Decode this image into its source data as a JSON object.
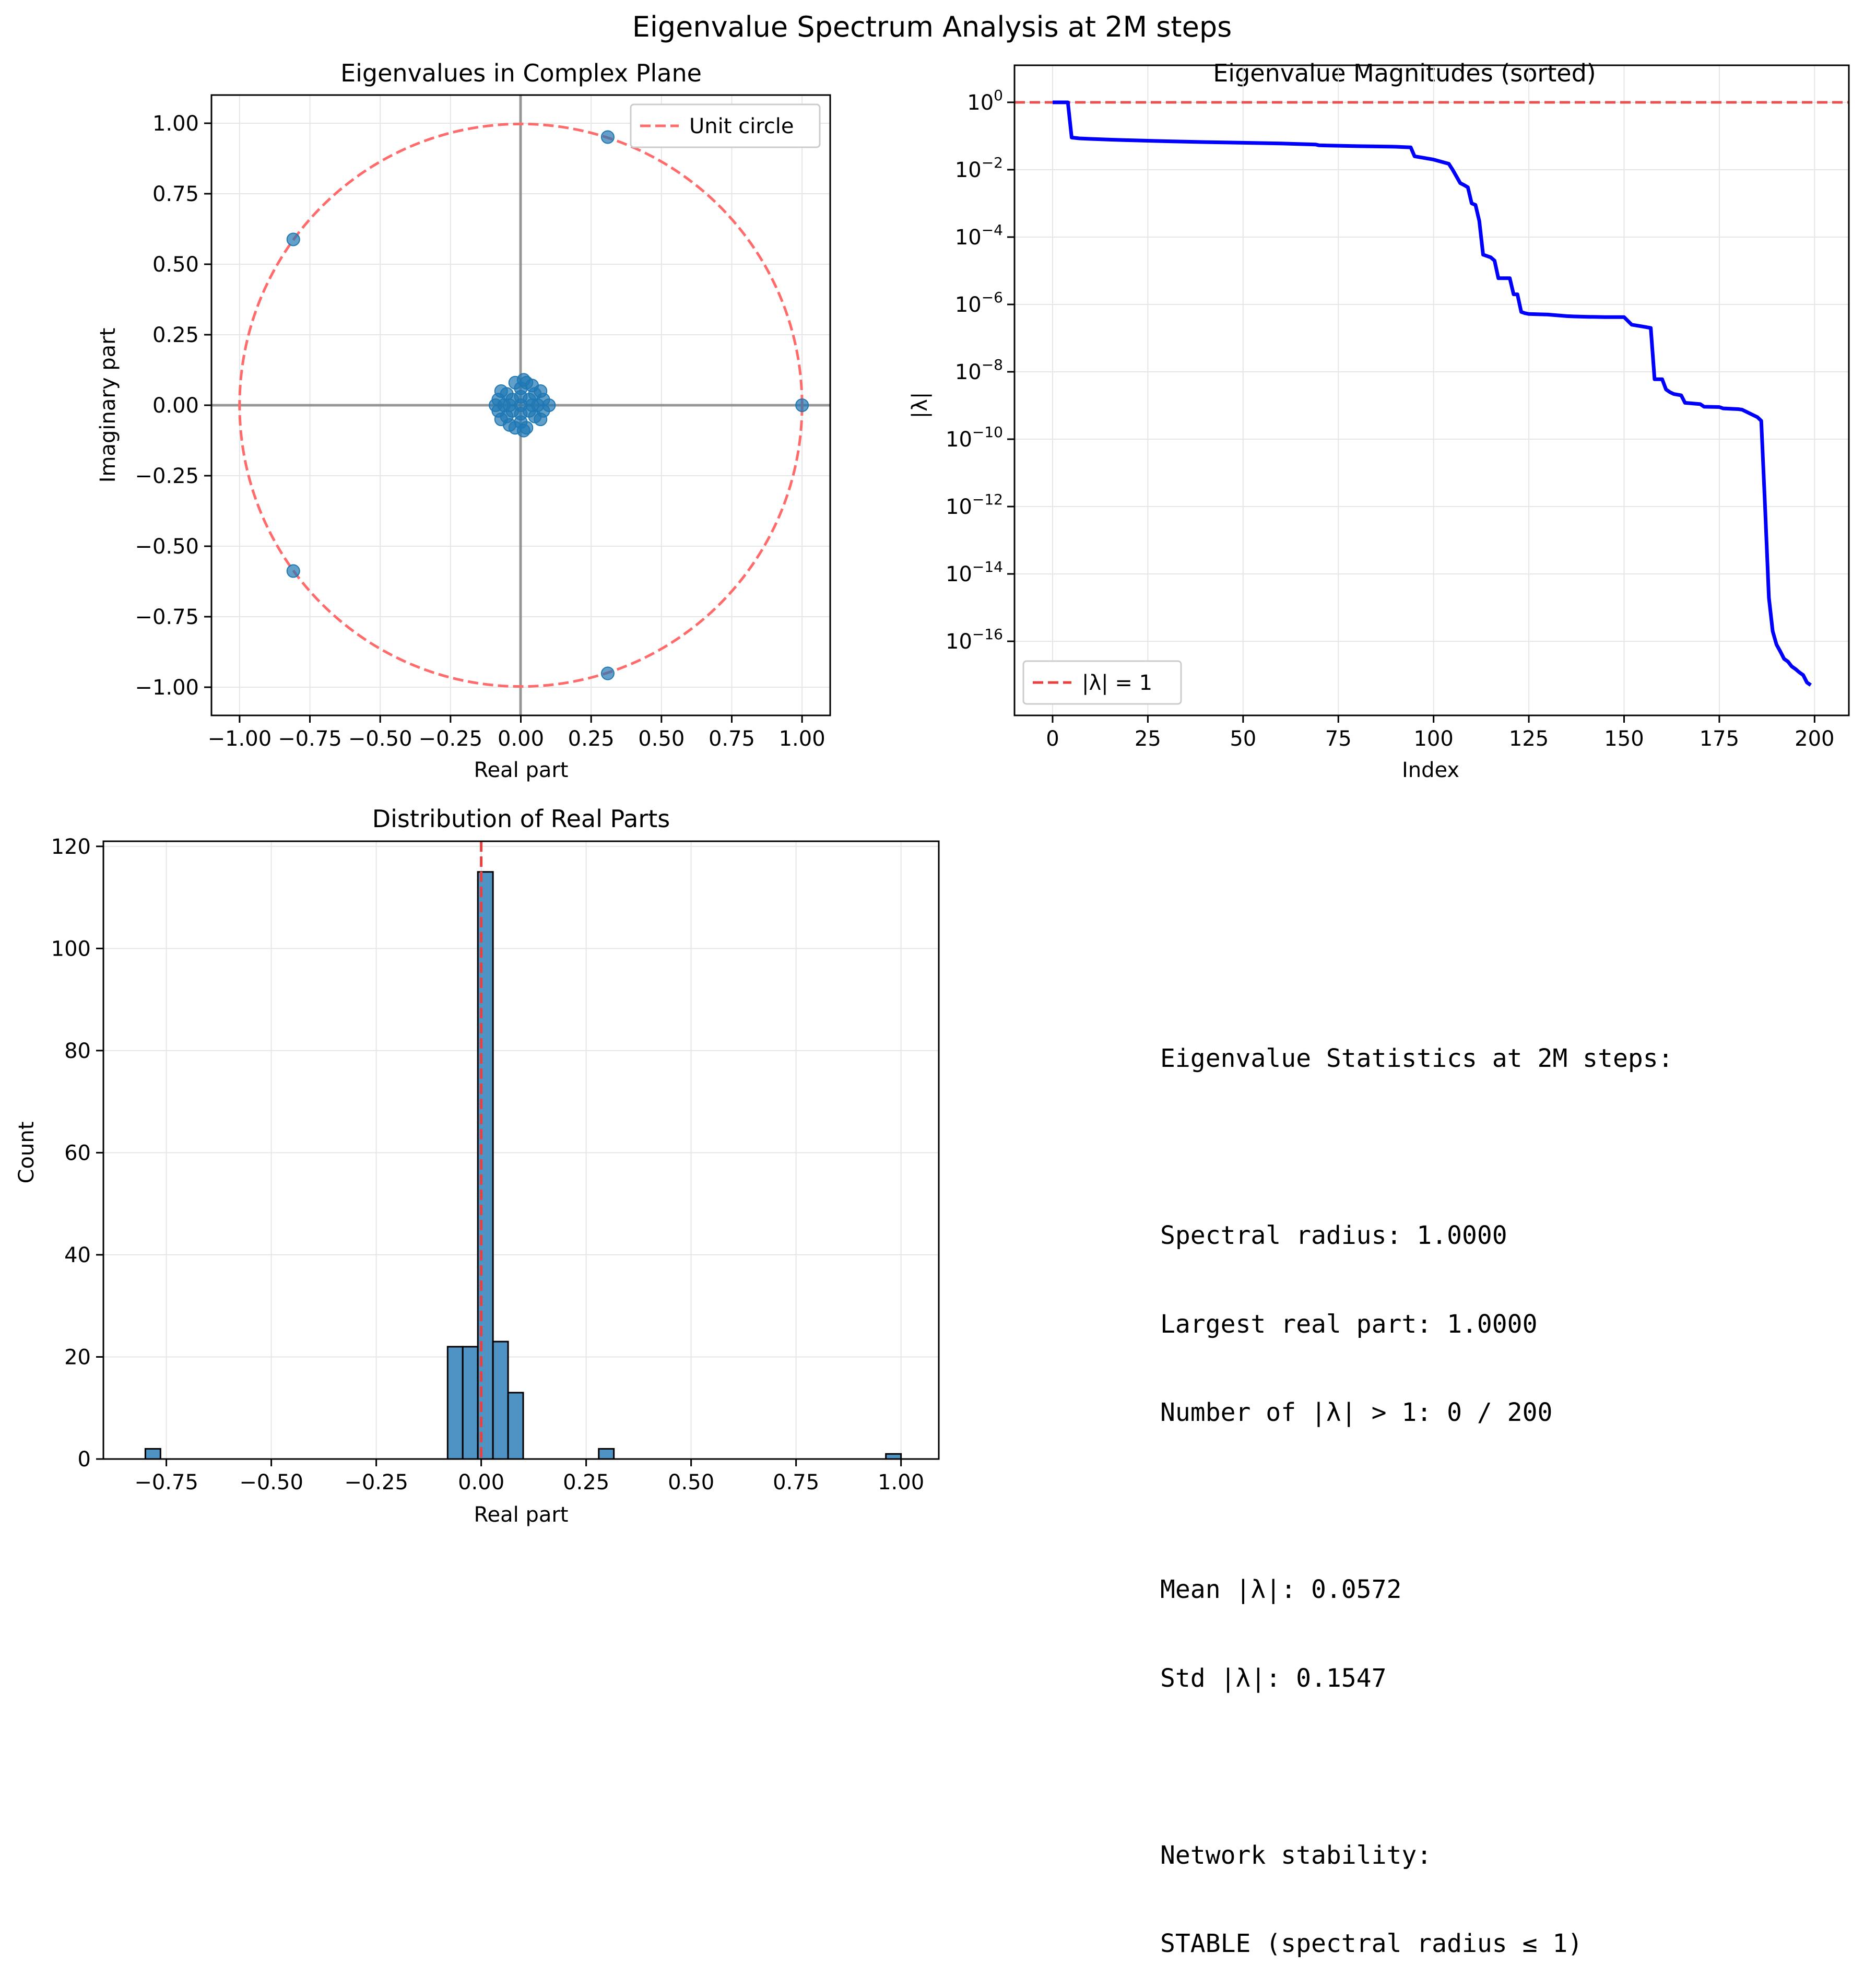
{
  "figure_title": "Eigenvalue Spectrum Analysis at 2M steps",
  "colors": {
    "scatter": "#1f77b4",
    "unit_circle": "#ff6b6b",
    "magnitude_line": "#0000ff",
    "reference_line": "#e8413f",
    "hist_bar": "#4f93c4",
    "grid": "#e6e6e6"
  },
  "chart_data": [
    {
      "type": "scatter",
      "title": "Eigenvalues in Complex Plane",
      "xlabel": "Real part",
      "ylabel": "Imaginary part",
      "xlim": [
        -1.1,
        1.1
      ],
      "ylim": [
        -1.1,
        1.1
      ],
      "xticks": [
        "−1.00",
        "−0.75",
        "−0.50",
        "−0.25",
        "0.00",
        "0.25",
        "0.50",
        "0.75",
        "1.00"
      ],
      "yticks": [
        "−1.00",
        "−0.75",
        "−0.50",
        "−0.25",
        "0.00",
        "0.25",
        "0.50",
        "0.75",
        "1.00"
      ],
      "grid": true,
      "legend": {
        "placement": "upper right",
        "entries": [
          "Unit circle"
        ]
      },
      "points": [
        [
          1.0,
          0.0
        ],
        [
          0.309,
          0.951
        ],
        [
          0.309,
          -0.951
        ],
        [
          -0.809,
          0.588
        ],
        [
          -0.809,
          -0.588
        ],
        [
          0.0,
          0.0
        ],
        [
          0.03,
          0.02
        ],
        [
          -0.03,
          0.02
        ],
        [
          0.03,
          -0.02
        ],
        [
          -0.03,
          -0.02
        ],
        [
          0.06,
          0.0
        ],
        [
          -0.06,
          0.0
        ],
        [
          0.0,
          0.06
        ],
        [
          0.0,
          -0.06
        ],
        [
          0.05,
          0.04
        ],
        [
          -0.05,
          0.04
        ],
        [
          0.05,
          -0.04
        ],
        [
          -0.05,
          -0.04
        ],
        [
          0.08,
          0.02
        ],
        [
          -0.08,
          0.02
        ],
        [
          0.08,
          -0.02
        ],
        [
          -0.08,
          -0.02
        ],
        [
          0.02,
          0.08
        ],
        [
          -0.02,
          0.08
        ],
        [
          0.02,
          -0.08
        ],
        [
          -0.02,
          -0.08
        ],
        [
          0.1,
          0.0
        ],
        [
          -0.09,
          0.0
        ],
        [
          0.04,
          0.07
        ],
        [
          -0.04,
          -0.07
        ],
        [
          0.07,
          0.05
        ],
        [
          -0.07,
          -0.05
        ],
        [
          0.07,
          -0.05
        ],
        [
          -0.07,
          0.05
        ],
        [
          0.01,
          0.09
        ],
        [
          0.01,
          -0.09
        ],
        [
          0.04,
          0.0
        ],
        [
          -0.04,
          0.0
        ],
        [
          0.0,
          0.03
        ],
        [
          0.0,
          -0.03
        ]
      ]
    },
    {
      "type": "line",
      "title": "Eigenvalue Magnitudes (sorted)",
      "xlabel": "Index",
      "ylabel": "|λ|",
      "yscale": "log",
      "xlim": [
        -10,
        209
      ],
      "ylim_log10": [
        -18.2,
        1.1
      ],
      "xticks": [
        "0",
        "25",
        "50",
        "75",
        "100",
        "125",
        "150",
        "175",
        "200"
      ],
      "yticks": [
        {
          "base": "10",
          "exp": "0"
        },
        {
          "base": "10",
          "exp": "−2"
        },
        {
          "base": "10",
          "exp": "−4"
        },
        {
          "base": "10",
          "exp": "−6"
        },
        {
          "base": "10",
          "exp": "−8"
        },
        {
          "base": "10",
          "exp": "−10"
        },
        {
          "base": "10",
          "exp": "−12"
        },
        {
          "base": "10",
          "exp": "−14"
        },
        {
          "base": "10",
          "exp": "−16"
        }
      ],
      "grid": true,
      "legend": {
        "placement": "lower left",
        "entries": [
          "|λ| = 1"
        ]
      },
      "x": [
        0,
        4,
        5,
        7,
        10,
        15,
        20,
        30,
        40,
        50,
        60,
        69,
        70,
        80,
        90,
        94,
        95,
        100,
        104,
        105,
        107,
        108,
        109,
        110,
        111,
        112,
        113,
        115,
        116,
        117,
        118,
        120,
        121,
        122,
        123,
        124,
        125,
        130,
        135,
        137,
        140,
        145,
        150,
        152,
        155,
        157,
        158,
        160,
        161,
        162,
        163,
        165,
        166,
        170,
        171,
        175,
        176,
        180,
        181,
        185,
        186,
        187,
        188,
        189,
        190,
        191,
        192,
        193,
        194,
        195,
        196,
        197,
        198,
        199
      ],
      "y": [
        1.0,
        1.0,
        0.09,
        0.085,
        0.082,
        0.078,
        0.075,
        0.07,
        0.066,
        0.063,
        0.06,
        0.056,
        0.053,
        0.05,
        0.048,
        0.046,
        0.025,
        0.02,
        0.015,
        0.01,
        0.004,
        0.0035,
        0.003,
        0.001,
        0.0009,
        0.0003,
        3e-05,
        2.5e-05,
        2e-05,
        6e-06,
        6e-06,
        6e-06,
        2e-06,
        2e-06,
        6e-07,
        5.5e-07,
        5.2e-07,
        5e-07,
        4.5e-07,
        4.4e-07,
        4.3e-07,
        4.2e-07,
        4.2e-07,
        2.5e-07,
        2.2e-07,
        2e-07,
        6e-09,
        6e-09,
        3e-09,
        2.5e-09,
        2.2e-09,
        2e-09,
        1.2e-09,
        1.1e-09,
        9.2e-10,
        9e-10,
        8.2e-10,
        7.8e-10,
        7.5e-10,
        4.5e-10,
        3.5e-10,
        1e-12,
        2e-15,
        2e-16,
        8e-17,
        5e-17,
        3e-17,
        2.5e-17,
        1.8e-17,
        1.5e-17,
        1.2e-17,
        1e-17,
        6e-18,
        5e-18
      ]
    },
    {
      "type": "bar",
      "title": "Distribution of Real Parts",
      "xlabel": "Real part",
      "ylabel": "Count",
      "xlim": [
        -0.9,
        1.09
      ],
      "ylim": [
        0,
        121
      ],
      "xticks": [
        "−0.75",
        "−0.50",
        "−0.25",
        "0.00",
        "0.25",
        "0.50",
        "0.75",
        "1.00"
      ],
      "yticks": [
        "0",
        "20",
        "40",
        "60",
        "80",
        "100",
        "120"
      ],
      "grid": true,
      "bin_edges": [
        -0.8,
        -0.764,
        -0.728,
        -0.692,
        -0.656,
        -0.62,
        -0.584,
        -0.548,
        -0.512,
        -0.476,
        -0.44,
        -0.404,
        -0.368,
        -0.332,
        -0.296,
        -0.26,
        -0.224,
        -0.188,
        -0.152,
        -0.116,
        -0.08,
        -0.044,
        -0.008,
        0.028,
        0.064,
        0.1,
        0.136,
        0.172,
        0.208,
        0.244,
        0.28,
        0.316,
        0.352,
        0.388,
        0.424,
        0.46,
        0.496,
        0.532,
        0.568,
        0.604,
        0.64,
        0.676,
        0.712,
        0.748,
        0.784,
        0.82,
        0.856,
        0.892,
        0.928,
        0.964,
        1.0
      ],
      "counts": [
        2,
        0,
        0,
        0,
        0,
        0,
        0,
        0,
        0,
        0,
        0,
        0,
        0,
        0,
        0,
        0,
        0,
        0,
        0,
        0,
        22,
        22,
        115,
        23,
        13,
        0,
        0,
        0,
        0,
        0,
        2,
        0,
        0,
        0,
        0,
        0,
        0,
        0,
        0,
        0,
        0,
        0,
        0,
        0,
        0,
        0,
        0,
        0,
        0,
        1
      ]
    }
  ],
  "stats": {
    "lines": [
      "Eigenvalue Statistics at 2M steps:",
      "",
      "Spectral radius: 1.0000",
      "Largest real part: 1.0000",
      "Number of |λ| > 1: 0 / 200",
      "",
      "Mean |λ|: 0.0572",
      "Std |λ|: 0.1547",
      "",
      "Network stability:",
      "STABLE (spectral radius ≤ 1)"
    ]
  }
}
